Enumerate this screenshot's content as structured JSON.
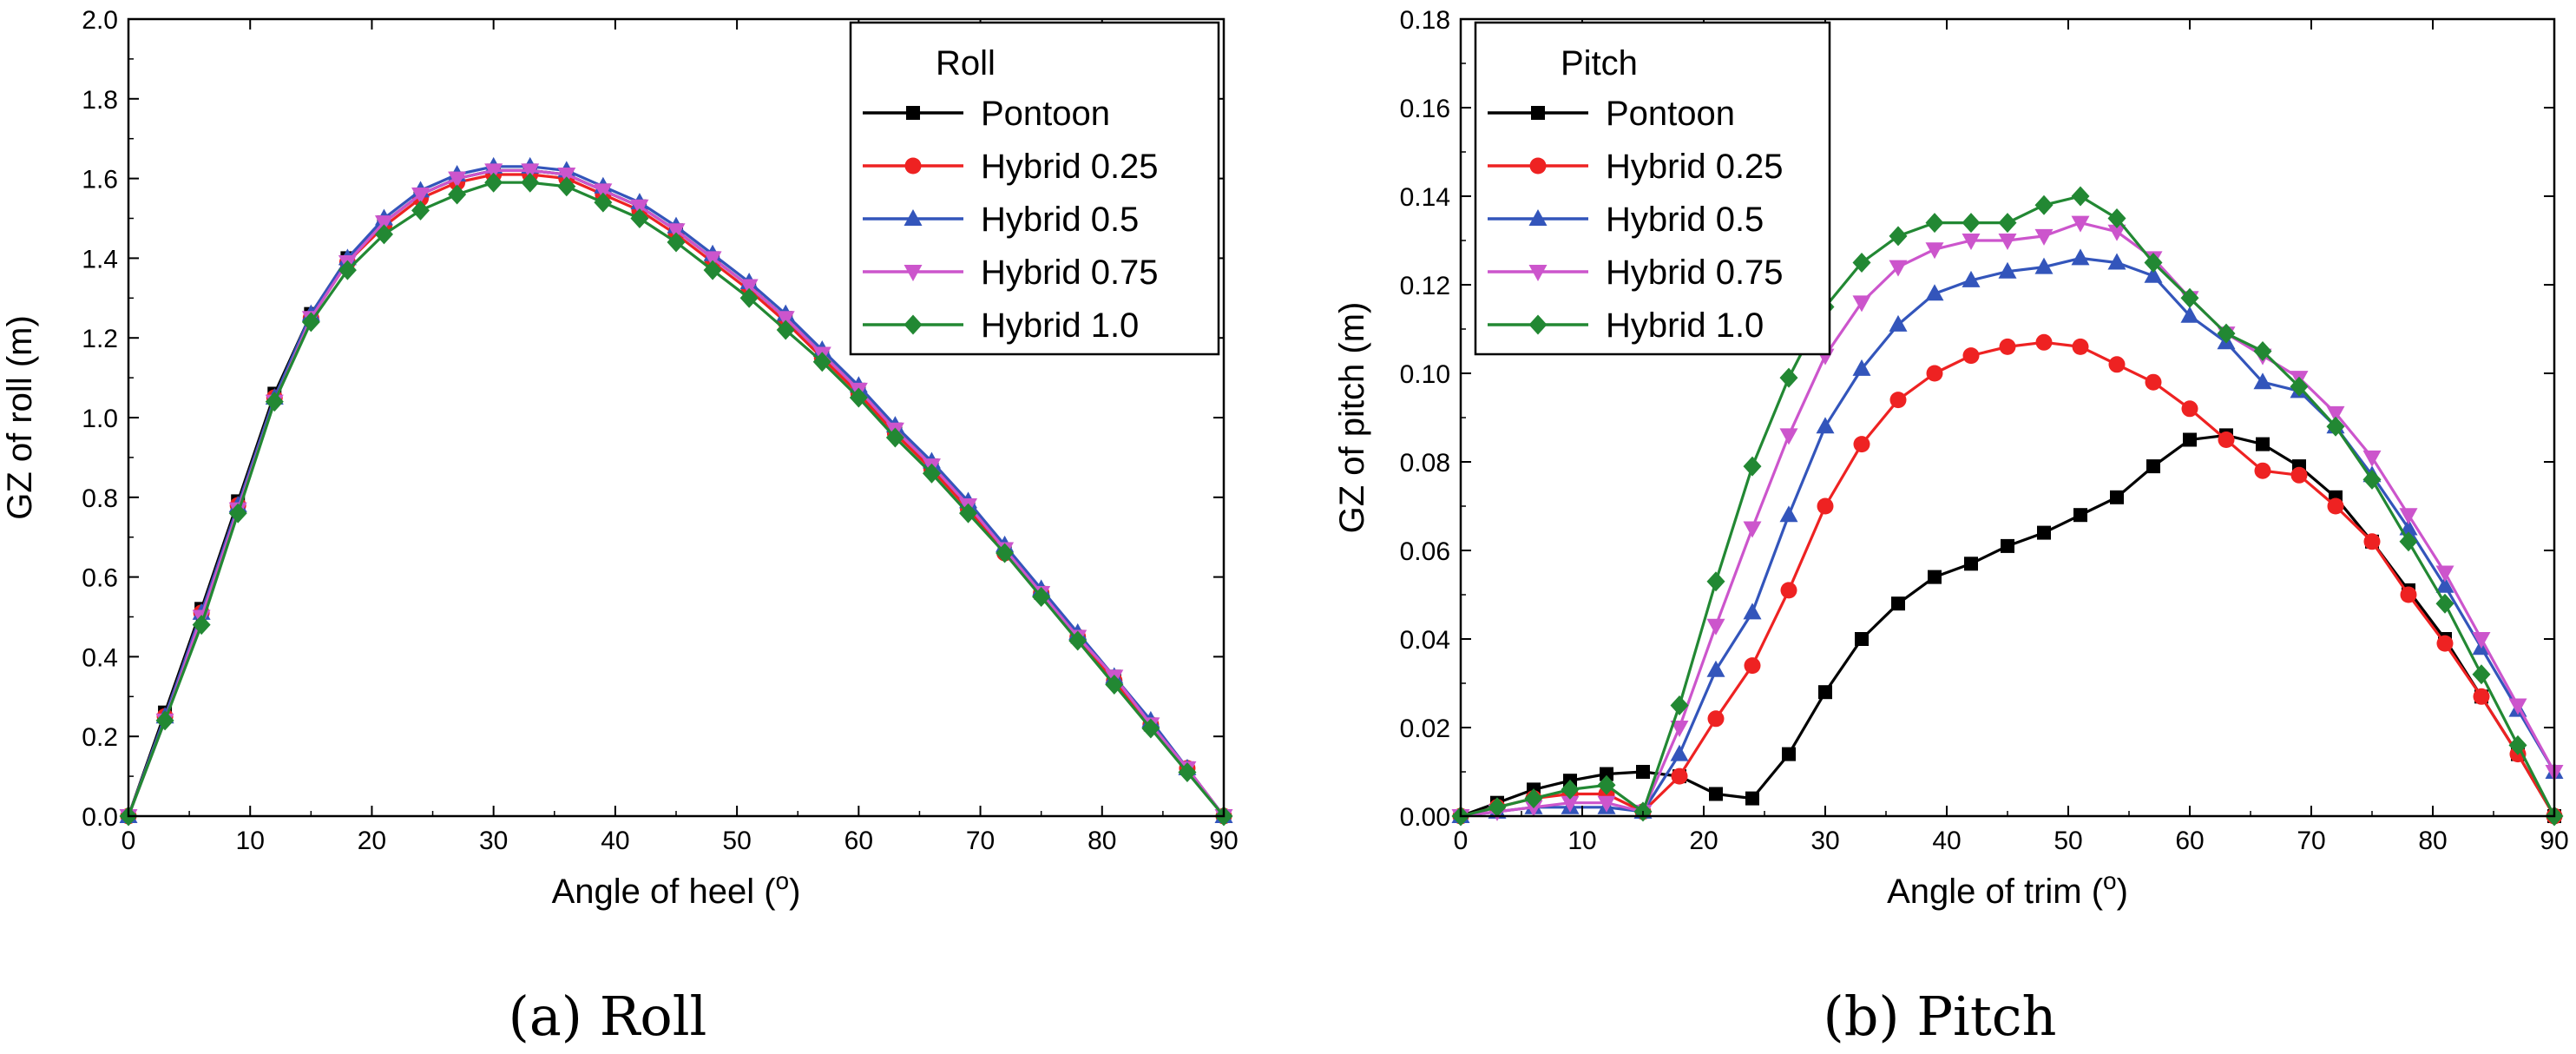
{
  "chart_data": [
    {
      "type": "line",
      "legend_title": "Roll",
      "caption": "(a)  Roll",
      "xlabel": "Angle of heel",
      "xunit": "o",
      "ylabel": "GZ of roll (m)",
      "xlim": [
        0,
        90
      ],
      "ylim": [
        0,
        2.0
      ],
      "xticks": [
        0,
        10,
        20,
        30,
        40,
        50,
        60,
        70,
        80,
        90
      ],
      "yticks": [
        "0.0",
        "0.2",
        "0.4",
        "0.6",
        "0.8",
        "1.0",
        "1.2",
        "1.4",
        "1.6",
        "1.8",
        "2.0"
      ],
      "grid": false,
      "legend_position": "top-right",
      "x": [
        0,
        3,
        6,
        9,
        12,
        15,
        18,
        21,
        24,
        27,
        30,
        33,
        36,
        39,
        42,
        45,
        48,
        51,
        54,
        57,
        60,
        63,
        66,
        69,
        72,
        75,
        78,
        81,
        84,
        87,
        90
      ],
      "series": [
        {
          "name": "Pontoon",
          "color": "#000000",
          "marker": "square",
          "values": [
            0,
            0.26,
            0.52,
            0.79,
            1.06,
            1.26,
            1.4,
            1.49,
            1.56,
            1.6,
            1.62,
            1.62,
            1.61,
            1.57,
            1.53,
            1.47,
            1.4,
            1.33,
            1.25,
            1.16,
            1.07,
            0.97,
            0.88,
            0.78,
            0.67,
            0.56,
            0.45,
            0.35,
            0.23,
            0.12,
            0
          ]
        },
        {
          "name": "Hybrid 0.25",
          "color": "#ee2222",
          "marker": "circle",
          "values": [
            0,
            0.25,
            0.51,
            0.78,
            1.05,
            1.25,
            1.39,
            1.48,
            1.55,
            1.59,
            1.61,
            1.61,
            1.6,
            1.56,
            1.52,
            1.46,
            1.39,
            1.32,
            1.24,
            1.15,
            1.06,
            0.96,
            0.87,
            0.77,
            0.66,
            0.56,
            0.45,
            0.34,
            0.23,
            0.12,
            0
          ]
        },
        {
          "name": "Hybrid 0.5",
          "color": "#3355bb",
          "marker": "triangle-up",
          "values": [
            0,
            0.25,
            0.51,
            0.78,
            1.05,
            1.26,
            1.4,
            1.5,
            1.57,
            1.61,
            1.63,
            1.63,
            1.62,
            1.58,
            1.54,
            1.48,
            1.41,
            1.34,
            1.26,
            1.17,
            1.08,
            0.98,
            0.89,
            0.79,
            0.68,
            0.57,
            0.46,
            0.35,
            0.24,
            0.12,
            0
          ]
        },
        {
          "name": "Hybrid 0.75",
          "color": "#cc55cc",
          "marker": "triangle-down",
          "values": [
            0,
            0.24,
            0.5,
            0.77,
            1.04,
            1.25,
            1.39,
            1.49,
            1.56,
            1.6,
            1.62,
            1.62,
            1.61,
            1.57,
            1.53,
            1.47,
            1.4,
            1.33,
            1.25,
            1.16,
            1.07,
            0.97,
            0.88,
            0.78,
            0.67,
            0.56,
            0.45,
            0.35,
            0.23,
            0.12,
            0
          ]
        },
        {
          "name": "Hybrid 1.0",
          "color": "#228833",
          "marker": "diamond",
          "values": [
            0,
            0.24,
            0.48,
            0.76,
            1.04,
            1.24,
            1.37,
            1.46,
            1.52,
            1.56,
            1.59,
            1.59,
            1.58,
            1.54,
            1.5,
            1.44,
            1.37,
            1.3,
            1.22,
            1.14,
            1.05,
            0.95,
            0.86,
            0.76,
            0.66,
            0.55,
            0.44,
            0.33,
            0.22,
            0.11,
            0
          ]
        }
      ]
    },
    {
      "type": "line",
      "legend_title": "Pitch",
      "caption": "(b)  Pitch",
      "xlabel": "Angle of trim",
      "xunit": "o",
      "ylabel": "GZ of pitch (m)",
      "xlim": [
        0,
        90
      ],
      "ylim": [
        0,
        0.18
      ],
      "xticks": [
        0,
        10,
        20,
        30,
        40,
        50,
        60,
        70,
        80,
        90
      ],
      "yticks": [
        "0.00",
        "0.02",
        "0.04",
        "0.06",
        "0.08",
        "0.10",
        "0.12",
        "0.14",
        "0.16",
        "0.18"
      ],
      "grid": false,
      "legend_position": "top-left",
      "x": [
        0,
        3,
        6,
        9,
        12,
        15,
        18,
        21,
        24,
        27,
        30,
        33,
        36,
        39,
        42,
        45,
        48,
        51,
        54,
        57,
        60,
        63,
        66,
        69,
        72,
        75,
        78,
        81,
        84,
        87,
        90
      ],
      "series": [
        {
          "name": "Pontoon",
          "color": "#000000",
          "marker": "square",
          "values": [
            0,
            0.003,
            0.006,
            0.008,
            0.0095,
            0.01,
            0.009,
            0.005,
            0.004,
            0.014,
            0.028,
            0.04,
            0.048,
            0.054,
            0.057,
            0.061,
            0.064,
            0.068,
            0.072,
            0.079,
            0.085,
            0.086,
            0.084,
            0.079,
            0.072,
            0.062,
            0.051,
            0.04,
            0.027,
            0.014,
            0
          ]
        },
        {
          "name": "Hybrid 0.25",
          "color": "#ee2222",
          "marker": "circle",
          "values": [
            0,
            0.002,
            0.004,
            0.005,
            0.005,
            0.001,
            0.009,
            0.022,
            0.034,
            0.051,
            0.07,
            0.084,
            0.094,
            0.1,
            0.104,
            0.106,
            0.107,
            0.106,
            0.102,
            0.098,
            0.092,
            0.085,
            0.078,
            0.077,
            0.07,
            0.062,
            0.05,
            0.039,
            0.027,
            0.014,
            0
          ]
        },
        {
          "name": "Hybrid 0.5",
          "color": "#3355bb",
          "marker": "triangle-up",
          "values": [
            0,
            0.001,
            0.002,
            0.002,
            0.002,
            0.001,
            0.014,
            0.033,
            0.046,
            0.068,
            0.088,
            0.101,
            0.111,
            0.118,
            0.121,
            0.123,
            0.124,
            0.126,
            0.125,
            0.122,
            0.113,
            0.107,
            0.098,
            0.096,
            0.088,
            0.077,
            0.065,
            0.052,
            0.038,
            0.024,
            0.01
          ]
        },
        {
          "name": "Hybrid 0.75",
          "color": "#cc55cc",
          "marker": "triangle-down",
          "values": [
            0,
            0.001,
            0.002,
            0.003,
            0.003,
            0.001,
            0.02,
            0.043,
            0.065,
            0.086,
            0.104,
            0.116,
            0.124,
            0.128,
            0.13,
            0.13,
            0.131,
            0.134,
            0.132,
            0.126,
            0.117,
            0.109,
            0.104,
            0.099,
            0.091,
            0.081,
            0.068,
            0.055,
            0.04,
            0.025,
            0.01
          ]
        },
        {
          "name": "Hybrid 1.0",
          "color": "#228833",
          "marker": "diamond",
          "values": [
            0,
            0.002,
            0.004,
            0.006,
            0.007,
            0.001,
            0.025,
            0.053,
            0.079,
            0.099,
            0.115,
            0.125,
            0.131,
            0.134,
            0.134,
            0.134,
            0.138,
            0.14,
            0.135,
            0.125,
            0.117,
            0.109,
            0.105,
            0.097,
            0.088,
            0.076,
            0.062,
            0.048,
            0.032,
            0.016,
            0
          ]
        }
      ]
    }
  ]
}
